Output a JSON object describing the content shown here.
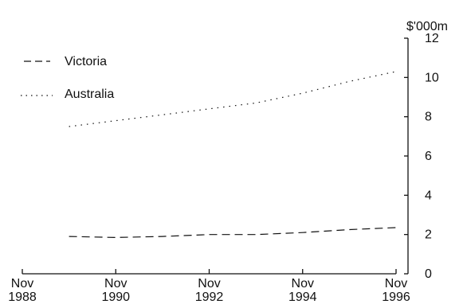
{
  "chart_data": {
    "type": "line",
    "title": "",
    "xlabel": "",
    "ylabel": "$'000m",
    "ylim": [
      0,
      12
    ],
    "yticks": [
      "0",
      "2",
      "4",
      "6",
      "8",
      "10",
      "12"
    ],
    "xlim": [
      1988.83,
      1996.83
    ],
    "xticks": [
      {
        "month": "Nov",
        "year": "1988",
        "x": 1988.83
      },
      {
        "month": "Nov",
        "year": "1990",
        "x": 1990.83
      },
      {
        "month": "Nov",
        "year": "1992",
        "x": 1992.83
      },
      {
        "month": "Nov",
        "year": "1994",
        "x": 1994.83
      },
      {
        "month": "Nov",
        "year": "1996",
        "x": 1996.83
      }
    ],
    "grid": false,
    "legend_position": "top-left",
    "series": [
      {
        "name": "Victoria",
        "style": "dashed",
        "x": [
          1989.83,
          1990.83,
          1991.83,
          1992.83,
          1993.83,
          1994.83,
          1995.83,
          1996.83
        ],
        "y": [
          1.9,
          1.85,
          1.9,
          2.0,
          2.0,
          2.1,
          2.25,
          2.35
        ]
      },
      {
        "name": "Australia",
        "style": "dotted",
        "x": [
          1989.83,
          1990.83,
          1991.83,
          1992.83,
          1993.83,
          1994.83,
          1995.83,
          1996.83
        ],
        "y": [
          7.5,
          7.8,
          8.1,
          8.4,
          8.7,
          9.2,
          9.8,
          10.3
        ]
      }
    ]
  }
}
